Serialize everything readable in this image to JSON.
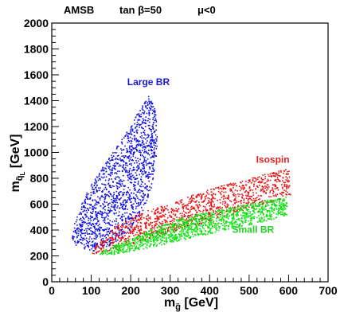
{
  "chart_data": {
    "type": "scatter",
    "title_parts": [
      "AMSB",
      "tan β=50",
      "μ<0"
    ],
    "xlabel": {
      "main": "m",
      "sub": "g̃",
      "unit": " [GeV]"
    },
    "ylabel": {
      "main": "m",
      "sub": "q̃",
      "subsub": "L",
      "unit": " [GeV]"
    },
    "xlim": [
      0,
      700
    ],
    "ylim": [
      0,
      2000
    ],
    "xticks": [
      0,
      100,
      200,
      300,
      400,
      500,
      600,
      700
    ],
    "yticks": [
      0,
      200,
      400,
      600,
      800,
      1000,
      1200,
      1400,
      1600,
      1800,
      2000
    ],
    "grid": false,
    "annotations": [
      {
        "text": "Large BR",
        "x": 245,
        "y": 1520,
        "color": "#1a1adc"
      },
      {
        "text": "Isospin",
        "x": 560,
        "y": 920,
        "color": "#e02020"
      },
      {
        "text": "Small BR",
        "x": 510,
        "y": 380,
        "color": "#20d020"
      }
    ],
    "series": [
      {
        "color": "#1010e0",
        "region": {
          "x": [
            45,
            60,
            80,
            110,
            150,
            190,
            225,
            250,
            262,
            268,
            262,
            245,
            215,
            175,
            130,
            90,
            70,
            55,
            45
          ],
          "y": [
            330,
            280,
            260,
            240,
            290,
            380,
            520,
            720,
            920,
            1150,
            1330,
            1450,
            1300,
            1100,
            900,
            720,
            580,
            450,
            330
          ]
        }
      },
      {
        "color": "#e81010",
        "region": {
          "x": [
            100,
            150,
            250,
            350,
            450,
            550,
            590,
            605,
            600,
            520,
            420,
            320,
            220,
            150,
            110,
            100
          ],
          "y": [
            215,
            245,
            340,
            430,
            520,
            610,
            650,
            680,
            880,
            820,
            740,
            640,
            530,
            420,
            280,
            215
          ]
        }
      },
      {
        "color": "#10e010",
        "region": {
          "x": [
            110,
            150,
            250,
            350,
            450,
            550,
            595,
            595,
            520,
            420,
            320,
            240,
            170,
            120,
            110
          ],
          "y": [
            210,
            210,
            270,
            340,
            410,
            480,
            520,
            660,
            620,
            560,
            490,
            400,
            300,
            235,
            210
          ]
        }
      }
    ]
  }
}
